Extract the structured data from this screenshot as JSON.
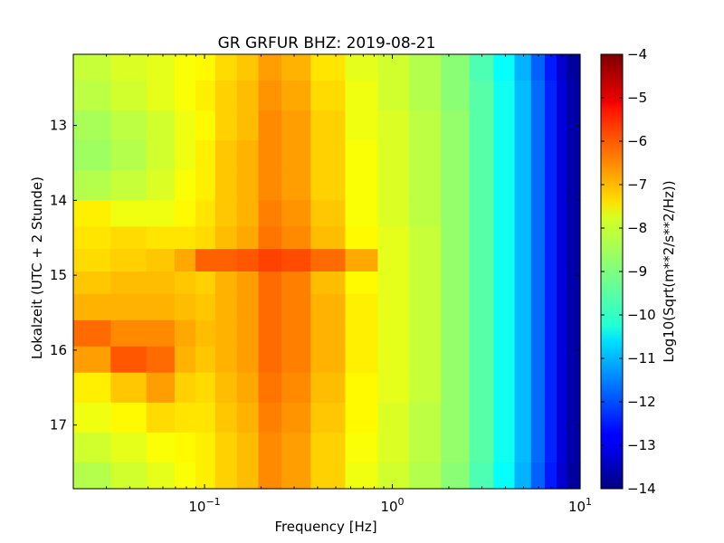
{
  "chart_data": {
    "type": "heatmap",
    "title": "GR GRFUR BHZ: 2019-08-21",
    "xlabel": "Frequency [Hz]",
    "ylabel": "Lokalzeit (UTC + 2 Stunde)",
    "x_scale": "log",
    "xlim": [
      0.02,
      10
    ],
    "ylim": [
      12.05,
      17.85
    ],
    "y_inverted": true,
    "x_ticks": [
      {
        "value": 0.1,
        "base": "10",
        "exp": "−1"
      },
      {
        "value": 1,
        "base": "10",
        "exp": "0"
      },
      {
        "value": 10,
        "base": "10",
        "exp": "1"
      }
    ],
    "y_ticks": [
      {
        "value": 13,
        "label": "13"
      },
      {
        "value": 14,
        "label": "14"
      },
      {
        "value": 15,
        "label": "15"
      },
      {
        "value": 16,
        "label": "16"
      },
      {
        "value": 17,
        "label": "17"
      }
    ],
    "colorbar": {
      "label": "Log10(Sqrt(m**2/s**2/Hz))",
      "range": [
        -14,
        -4
      ],
      "colormap": "jet",
      "ticks": [
        {
          "value": -4,
          "label": "−4"
        },
        {
          "value": -5,
          "label": "−5"
        },
        {
          "value": -6,
          "label": "−6"
        },
        {
          "value": -7,
          "label": "−7"
        },
        {
          "value": -8,
          "label": "−8"
        },
        {
          "value": -9,
          "label": "−9"
        },
        {
          "value": -10,
          "label": "−10"
        },
        {
          "value": -11,
          "label": "−11"
        },
        {
          "value": -12,
          "label": "−12"
        },
        {
          "value": -13,
          "label": "−13"
        },
        {
          "value": -14,
          "label": "−14"
        }
      ]
    },
    "freq_bins": [
      0.025,
      0.04,
      0.06,
      0.08,
      0.1,
      0.13,
      0.17,
      0.22,
      0.3,
      0.45,
      0.7,
      1.0,
      1.5,
      2.2,
      3.0,
      4.0,
      5.0,
      6.0,
      7.0,
      8.0,
      9.0
    ],
    "time_rows": [
      {
        "t": 12.2,
        "v": [
          -8.3,
          -8.1,
          -8.0,
          -7.8,
          -7.7,
          -7.4,
          -7.2,
          -6.8,
          -7.0,
          -7.5,
          -8.0,
          -8.2,
          -8.5,
          -8.9,
          -9.5,
          -10.2,
          -11.0,
          -11.8,
          -12.5,
          -13.2,
          -13.7
        ]
      },
      {
        "t": 12.6,
        "v": [
          -8.4,
          -8.2,
          -8.0,
          -7.8,
          -7.6,
          -7.3,
          -7.1,
          -6.7,
          -6.9,
          -7.4,
          -7.9,
          -8.2,
          -8.5,
          -8.9,
          -9.4,
          -10.1,
          -10.9,
          -11.7,
          -12.4,
          -13.1,
          -13.6
        ]
      },
      {
        "t": 13.0,
        "v": [
          -8.6,
          -8.4,
          -8.2,
          -7.9,
          -7.7,
          -7.3,
          -7.1,
          -6.6,
          -6.8,
          -7.3,
          -7.9,
          -8.1,
          -8.4,
          -8.8,
          -9.4,
          -10.1,
          -10.9,
          -11.7,
          -12.4,
          -13.1,
          -13.6
        ]
      },
      {
        "t": 13.4,
        "v": [
          -8.7,
          -8.5,
          -8.2,
          -7.9,
          -7.6,
          -7.2,
          -7.0,
          -6.6,
          -6.8,
          -7.3,
          -7.8,
          -8.1,
          -8.4,
          -8.8,
          -9.4,
          -10.1,
          -10.9,
          -11.7,
          -12.4,
          -13.1,
          -13.6
        ]
      },
      {
        "t": 13.8,
        "v": [
          -8.5,
          -8.3,
          -8.1,
          -7.8,
          -7.6,
          -7.2,
          -7.0,
          -6.6,
          -6.8,
          -7.3,
          -7.8,
          -8.1,
          -8.4,
          -8.8,
          -9.4,
          -10.1,
          -10.9,
          -11.7,
          -12.4,
          -13.1,
          -13.6
        ]
      },
      {
        "t": 14.2,
        "v": [
          -7.6,
          -7.9,
          -7.9,
          -7.7,
          -7.5,
          -7.2,
          -7.0,
          -6.5,
          -6.7,
          -7.2,
          -7.8,
          -8.1,
          -8.4,
          -8.8,
          -9.4,
          -10.1,
          -10.9,
          -11.7,
          -12.4,
          -13.1,
          -13.6
        ]
      },
      {
        "t": 14.5,
        "v": [
          -7.5,
          -7.4,
          -7.5,
          -7.5,
          -7.4,
          -7.1,
          -6.9,
          -6.4,
          -6.6,
          -7.1,
          -7.7,
          -8.0,
          -8.3,
          -8.8,
          -9.4,
          -10.1,
          -10.9,
          -11.7,
          -12.4,
          -13.1,
          -13.6
        ]
      },
      {
        "t": 14.8,
        "v": [
          -7.4,
          -7.3,
          -7.2,
          -6.9,
          -6.2,
          -6.2,
          -6.1,
          -5.9,
          -6.0,
          -6.3,
          -6.9,
          -8.0,
          -8.3,
          -8.8,
          -9.4,
          -10.1,
          -10.9,
          -11.7,
          -12.4,
          -13.1,
          -13.6
        ]
      },
      {
        "t": 15.1,
        "v": [
          -7.2,
          -7.1,
          -7.1,
          -7.2,
          -7.3,
          -7.0,
          -6.8,
          -6.3,
          -6.5,
          -7.1,
          -7.7,
          -8.0,
          -8.3,
          -8.8,
          -9.4,
          -10.1,
          -10.9,
          -11.7,
          -12.4,
          -13.1,
          -13.6
        ]
      },
      {
        "t": 15.4,
        "v": [
          -7.0,
          -7.0,
          -7.0,
          -7.1,
          -7.2,
          -7.0,
          -6.8,
          -6.3,
          -6.5,
          -7.0,
          -7.6,
          -8.0,
          -8.3,
          -8.8,
          -9.4,
          -10.1,
          -10.9,
          -11.7,
          -12.4,
          -13.1,
          -13.6
        ]
      },
      {
        "t": 15.8,
        "v": [
          -6.3,
          -6.6,
          -6.6,
          -6.9,
          -7.1,
          -7.0,
          -6.8,
          -6.3,
          -6.5,
          -7.0,
          -7.6,
          -8.0,
          -8.3,
          -8.8,
          -9.4,
          -10.1,
          -10.9,
          -11.7,
          -12.4,
          -13.1,
          -13.6
        ]
      },
      {
        "t": 16.1,
        "v": [
          -6.8,
          -6.1,
          -6.3,
          -7.0,
          -7.2,
          -7.0,
          -6.8,
          -6.3,
          -6.5,
          -7.0,
          -7.6,
          -8.0,
          -8.3,
          -8.8,
          -9.4,
          -10.1,
          -10.9,
          -11.7,
          -12.4,
          -13.1,
          -13.6
        ]
      },
      {
        "t": 16.5,
        "v": [
          -7.6,
          -7.2,
          -6.8,
          -7.3,
          -7.4,
          -7.1,
          -6.9,
          -6.4,
          -6.6,
          -7.1,
          -7.7,
          -8.0,
          -8.3,
          -8.8,
          -9.4,
          -10.1,
          -10.9,
          -11.7,
          -12.4,
          -13.1,
          -13.6
        ]
      },
      {
        "t": 16.9,
        "v": [
          -7.9,
          -7.7,
          -7.4,
          -7.5,
          -7.5,
          -7.2,
          -7.0,
          -6.5,
          -6.7,
          -7.2,
          -7.7,
          -8.1,
          -8.4,
          -8.8,
          -9.4,
          -10.1,
          -10.9,
          -11.7,
          -12.4,
          -13.1,
          -13.6
        ]
      },
      {
        "t": 17.3,
        "v": [
          -8.2,
          -8.0,
          -7.8,
          -7.7,
          -7.6,
          -7.3,
          -7.1,
          -6.6,
          -6.8,
          -7.3,
          -7.8,
          -8.1,
          -8.4,
          -8.8,
          -9.4,
          -10.1,
          -10.9,
          -11.7,
          -12.4,
          -13.1,
          -13.6
        ]
      },
      {
        "t": 17.7,
        "v": [
          -8.5,
          -8.2,
          -8.0,
          -7.8,
          -7.6,
          -7.3,
          -7.1,
          -6.6,
          -6.8,
          -7.3,
          -7.9,
          -8.2,
          -8.5,
          -8.9,
          -9.5,
          -10.2,
          -11.0,
          -11.8,
          -12.5,
          -13.2,
          -13.7
        ]
      }
    ]
  }
}
